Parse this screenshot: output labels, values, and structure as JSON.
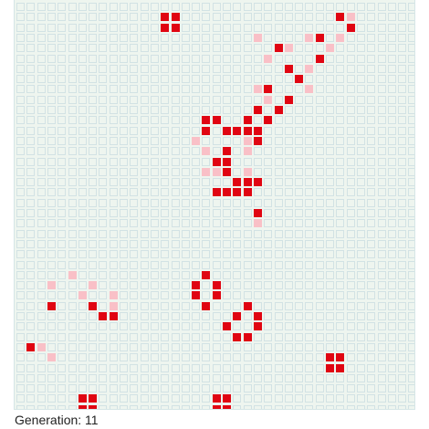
{
  "board": {
    "cols": 39,
    "rows": 40,
    "alive": [
      [
        14,
        1
      ],
      [
        15,
        1
      ],
      [
        14,
        2
      ],
      [
        15,
        2
      ],
      [
        31,
        1
      ],
      [
        32,
        2
      ],
      [
        29,
        3
      ],
      [
        25,
        4
      ],
      [
        26,
        6
      ],
      [
        29,
        5
      ],
      [
        27,
        7
      ],
      [
        24,
        8
      ],
      [
        26,
        9
      ],
      [
        25,
        10
      ],
      [
        23,
        10
      ],
      [
        24,
        11
      ],
      [
        22,
        11
      ],
      [
        20,
        12
      ],
      [
        21,
        12
      ],
      [
        22,
        12
      ],
      [
        23,
        12
      ],
      [
        23,
        13
      ],
      [
        20,
        14
      ],
      [
        19,
        15
      ],
      [
        20,
        15
      ],
      [
        20,
        16
      ],
      [
        21,
        17
      ],
      [
        22,
        17
      ],
      [
        23,
        17
      ],
      [
        19,
        18
      ],
      [
        20,
        18
      ],
      [
        21,
        18
      ],
      [
        22,
        18
      ],
      [
        18,
        11
      ],
      [
        18,
        12
      ],
      [
        19,
        11
      ],
      [
        23,
        20
      ],
      [
        18,
        26
      ],
      [
        17,
        27
      ],
      [
        19,
        27
      ],
      [
        17,
        28
      ],
      [
        19,
        28
      ],
      [
        18,
        29
      ],
      [
        3,
        29
      ],
      [
        8,
        30
      ],
      [
        9,
        30
      ],
      [
        7,
        29
      ],
      [
        22,
        29
      ],
      [
        21,
        30
      ],
      [
        23,
        30
      ],
      [
        20,
        31
      ],
      [
        23,
        31
      ],
      [
        21,
        32
      ],
      [
        22,
        32
      ],
      [
        1,
        33
      ],
      [
        30,
        34
      ],
      [
        31,
        34
      ],
      [
        30,
        35
      ],
      [
        31,
        35
      ],
      [
        6,
        38
      ],
      [
        7,
        38
      ],
      [
        6,
        39
      ],
      [
        7,
        39
      ],
      [
        19,
        38
      ],
      [
        20,
        38
      ],
      [
        19,
        39
      ],
      [
        20,
        39
      ]
    ],
    "dying": [
      [
        32,
        1
      ],
      [
        23,
        3
      ],
      [
        28,
        3
      ],
      [
        31,
        3
      ],
      [
        30,
        4
      ],
      [
        26,
        4
      ],
      [
        24,
        5
      ],
      [
        28,
        6
      ],
      [
        23,
        8
      ],
      [
        28,
        8
      ],
      [
        24,
        9
      ],
      [
        22,
        13
      ],
      [
        17,
        13
      ],
      [
        18,
        14
      ],
      [
        22,
        14
      ],
      [
        18,
        16
      ],
      [
        19,
        16
      ],
      [
        22,
        16
      ],
      [
        23,
        20
      ],
      [
        21,
        17
      ],
      [
        23,
        21
      ],
      [
        5,
        26
      ],
      [
        3,
        27
      ],
      [
        7,
        27
      ],
      [
        6,
        28
      ],
      [
        9,
        28
      ],
      [
        9,
        29
      ],
      [
        9,
        30
      ],
      [
        2,
        33
      ],
      [
        3,
        34
      ]
    ]
  },
  "status": {
    "generation_label": "Generation: 11"
  }
}
